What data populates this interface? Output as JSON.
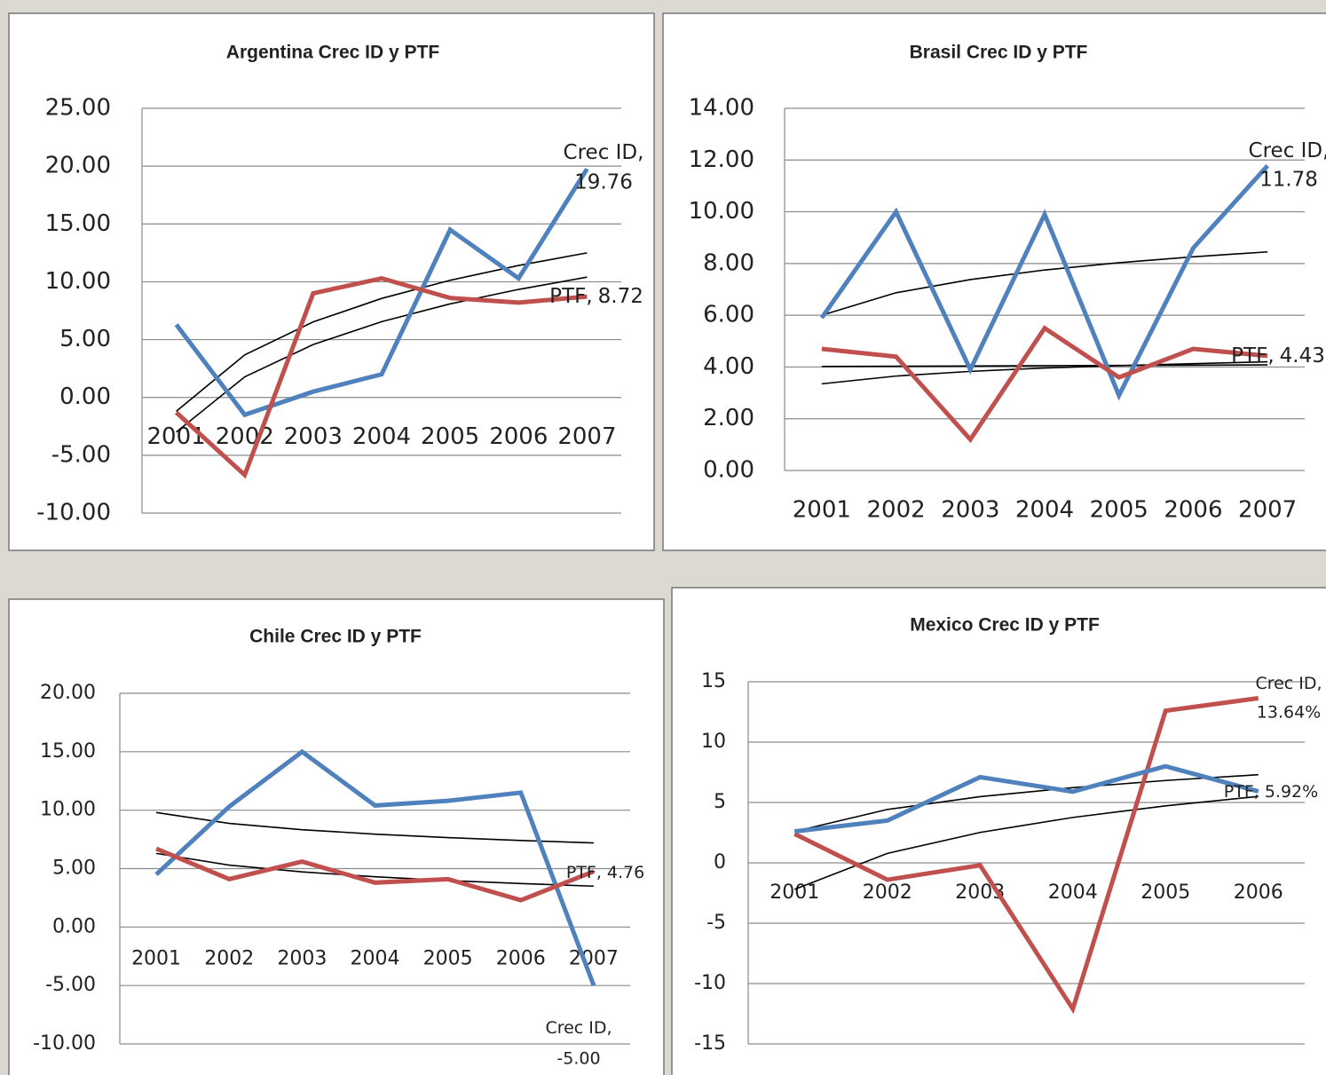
{
  "chart_data": [
    {
      "type": "line",
      "title": "Argentina Crec ID y PTF",
      "data_label_separator": ",",
      "categories": [
        "2001",
        "2002",
        "2003",
        "2004",
        "2005",
        "2006",
        "2007"
      ],
      "ylim": [
        -10,
        25
      ],
      "yticks": [
        {
          "value": -10,
          "label": "-10.00"
        },
        {
          "value": -5,
          "label": "-5.00"
        },
        {
          "value": 0,
          "label": "0.00"
        },
        {
          "value": 5,
          "label": "5.00"
        },
        {
          "value": 10,
          "label": "10.00"
        },
        {
          "value": 15,
          "label": "15.00"
        },
        {
          "value": 20,
          "label": "20.00"
        },
        {
          "value": 25,
          "label": "25.00"
        }
      ],
      "grid": true,
      "series": [
        {
          "name": "Crec ID",
          "color": "#4f81bd",
          "values": [
            6.3,
            -1.5,
            0.5,
            2.0,
            14.5,
            10.3,
            19.76
          ]
        },
        {
          "name": "PTF",
          "color": "#c0504d",
          "values": [
            -1.3,
            -6.7,
            9.0,
            10.3,
            8.6,
            8.2,
            8.72
          ]
        }
      ],
      "trendlines": [
        {
          "color": "#000000",
          "values": [
            -1.2,
            3.68,
            6.53,
            8.56,
            10.13,
            11.41,
            12.5
          ]
        },
        {
          "color": "#000000",
          "values": [
            -3.0,
            1.78,
            4.57,
            6.55,
            8.09,
            9.34,
            10.4
          ]
        }
      ]
    },
    {
      "type": "line",
      "title": "Brasil Crec ID y PTF",
      "data_label_separator": ",",
      "categories": [
        "2001",
        "2002",
        "2003",
        "2004",
        "2005",
        "2006",
        "2007"
      ],
      "ylim": [
        0,
        14
      ],
      "yticks": [
        {
          "value": 0,
          "label": "0.00"
        },
        {
          "value": 2,
          "label": "2.00"
        },
        {
          "value": 4,
          "label": "4.00"
        },
        {
          "value": 6,
          "label": "6.00"
        },
        {
          "value": 8,
          "label": "8.00"
        },
        {
          "value": 10,
          "label": "10.00"
        },
        {
          "value": 12,
          "label": "12.00"
        },
        {
          "value": 14,
          "label": "14.00"
        }
      ],
      "grid": true,
      "series": [
        {
          "name": "Crec ID",
          "color": "#4f81bd",
          "values": [
            5.9,
            10.0,
            3.9,
            9.9,
            2.9,
            8.6,
            11.78
          ]
        },
        {
          "name": "PTF",
          "color": "#c0504d",
          "values": [
            4.7,
            4.4,
            1.2,
            5.5,
            3.6,
            4.7,
            4.43
          ]
        }
      ],
      "trendlines": [
        {
          "color": "#000000",
          "values": [
            6.0,
            6.87,
            7.38,
            7.75,
            8.03,
            8.26,
            8.45
          ]
        },
        {
          "color": "#000000",
          "values": [
            3.35,
            3.65,
            3.83,
            3.96,
            4.05,
            4.13,
            4.2
          ]
        },
        {
          "color": "#000000",
          "values": [
            4.02,
            4.03,
            4.04,
            4.05,
            4.06,
            4.07,
            4.08
          ]
        }
      ]
    },
    {
      "type": "line",
      "title": "Chile Crec ID y PTF",
      "data_label_separator": ",",
      "categories": [
        "2001",
        "2002",
        "2003",
        "2004",
        "2005",
        "2006",
        "2007"
      ],
      "ylim": [
        -10,
        20
      ],
      "yticks": [
        {
          "value": -10,
          "label": "-10.00"
        },
        {
          "value": -5,
          "label": "-5.00"
        },
        {
          "value": 0,
          "label": "0.00"
        },
        {
          "value": 5,
          "label": "5.00"
        },
        {
          "value": 10,
          "label": "10.00"
        },
        {
          "value": 15,
          "label": "15.00"
        },
        {
          "value": 20,
          "label": "20.00"
        }
      ],
      "grid": true,
      "series": [
        {
          "name": "Crec ID",
          "color": "#4f81bd",
          "values": [
            4.5,
            10.3,
            15.0,
            10.4,
            10.8,
            11.5,
            -5.0
          ],
          "value_labels": [
            null,
            null,
            null,
            null,
            null,
            null,
            "-5.00"
          ]
        },
        {
          "name": "PTF",
          "color": "#c0504d",
          "values": [
            6.7,
            4.1,
            5.6,
            3.8,
            4.1,
            2.3,
            4.76
          ]
        }
      ],
      "trendlines": [
        {
          "color": "#000000",
          "values": [
            9.8,
            8.87,
            8.33,
            7.95,
            7.65,
            7.41,
            7.2
          ]
        },
        {
          "color": "#000000",
          "values": [
            6.3,
            5.3,
            4.72,
            4.3,
            3.98,
            3.72,
            3.5
          ]
        }
      ]
    },
    {
      "type": "line",
      "title": "Mexico  Crec ID y PTF",
      "data_label_separator": ",",
      "categories": [
        "2001",
        "2002",
        "2003",
        "2004",
        "2005",
        "2006"
      ],
      "ylim": [
        -15,
        15
      ],
      "yticks": [
        -15,
        -10,
        -5,
        0,
        5,
        10,
        15
      ],
      "grid": true,
      "series": [
        {
          "name": "Crec ID",
          "color": "#c0504d",
          "values": [
            2.4,
            -1.4,
            -0.2,
            -12.1,
            12.6,
            13.64
          ],
          "value_labels": [
            null,
            null,
            null,
            null,
            null,
            "13.64%"
          ]
        },
        {
          "name": "PTF",
          "color": "#4f81bd",
          "values": [
            2.6,
            3.5,
            7.1,
            5.9,
            8.0,
            5.92
          ],
          "value_labels": [
            null,
            null,
            null,
            null,
            null,
            "5.92%"
          ]
        }
      ],
      "trendlines": [
        {
          "color": "#000000",
          "values": [
            2.6,
            4.42,
            5.48,
            6.23,
            6.82,
            7.3
          ]
        },
        {
          "color": "#000000",
          "values": [
            -2.2,
            0.78,
            2.52,
            3.76,
            4.72,
            5.5
          ]
        }
      ]
    }
  ]
}
